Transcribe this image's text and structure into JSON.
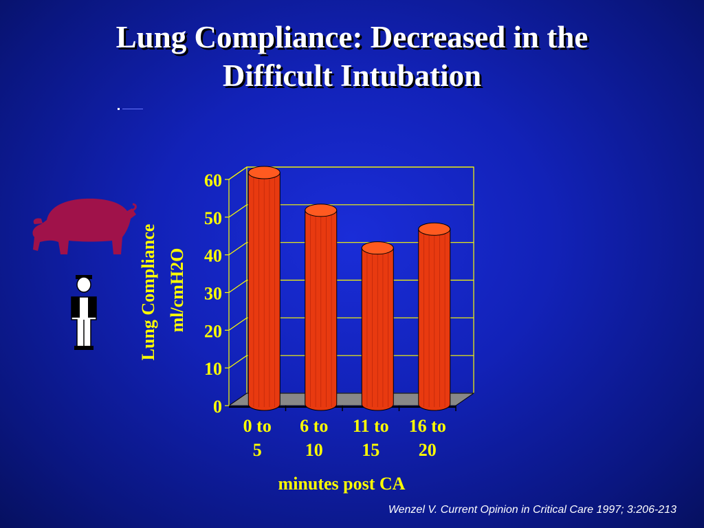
{
  "slide": {
    "title_line1": "Lung Compliance: Decreased in the",
    "title_line2": "Difficult Intubation",
    "citation": "Wenzel V. Current Opinion in Critical Care 1997; 3:206-213"
  },
  "icons": [
    "pig-icon",
    "person-icon"
  ],
  "colors": {
    "background": "#1222b8",
    "bar_fill": "#e83a10",
    "bar_top": "#ff5a20",
    "axis_text": "#ffff00",
    "gridlines": "#ffff00",
    "floor": "#888888",
    "pig": "#a0124a"
  },
  "chart_data": {
    "type": "bar",
    "categories": [
      [
        "0 to",
        "5"
      ],
      [
        "6  to",
        "10"
      ],
      [
        "11 to",
        "15"
      ],
      [
        "16 to",
        "20"
      ]
    ],
    "values": [
      60,
      50,
      40,
      45
    ],
    "title": "",
    "xlabel": "minutes post CA",
    "ylabel": [
      "Lung Compliance",
      "ml/cmH2O"
    ],
    "ylim": [
      0,
      60
    ],
    "yticks": [
      0,
      10,
      20,
      30,
      40,
      50,
      60
    ],
    "grid": true,
    "style": "3d-cylinder"
  }
}
